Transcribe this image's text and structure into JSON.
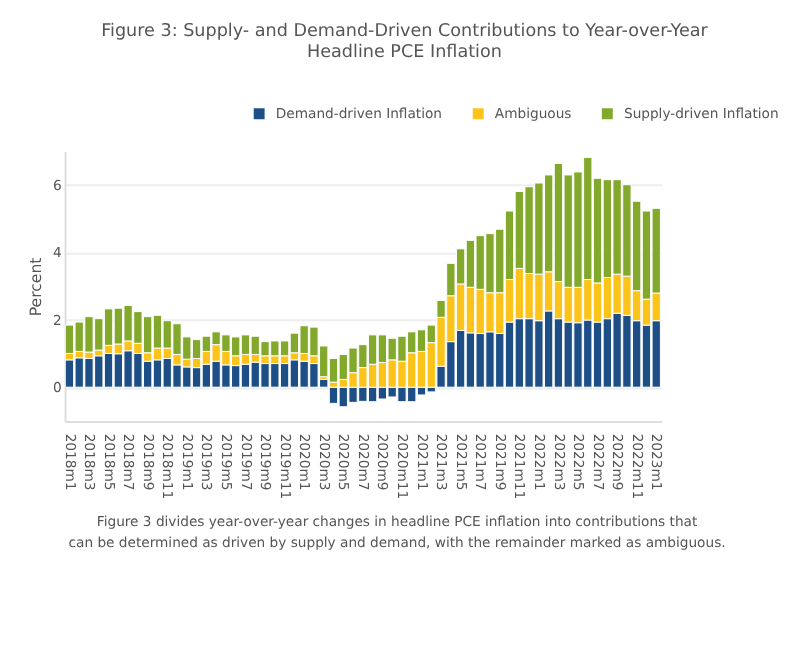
{
  "chart_data": {
    "type": "bar",
    "stacked": true,
    "title": "Figure 3: Supply- and Demand-Driven Contributions to Year-over-Year Headline PCE Inflation",
    "ylabel": "Percent",
    "annotations": [
      "Figure 3 divides year-over-year changes in headline PCE inflation into contributions that can be determined as driven by supply and demand, with the remainder marked as ambiguous."
    ],
    "categories": [
      "2018m1",
      null,
      "2018m3",
      null,
      "2018m5",
      null,
      "2018m7",
      null,
      "2018m9",
      null,
      "2018m11",
      null,
      "2019m1",
      null,
      "2019m3",
      null,
      "2019m5",
      null,
      "2019m7",
      null,
      "2019m9",
      null,
      "2019m11",
      null,
      "2020m1",
      null,
      "2020m3",
      null,
      "2020m5",
      null,
      "2020m7",
      null,
      "2020m9",
      null,
      "2020m11",
      null,
      "2021m1",
      null,
      "2021m3",
      null,
      "2021m5",
      null,
      "2021m7",
      null,
      "2021m9",
      null,
      "2021m11",
      null,
      "2022m1",
      null,
      "2022m3",
      null,
      "2022m5",
      null,
      "2022m7",
      null,
      "2022m9",
      null,
      "2022m11",
      null,
      "2023m1"
    ],
    "series": [
      {
        "name": "Demand-driven Inflation",
        "color": "#1d4f86",
        "values": [
          0.81,
          0.87,
          0.85,
          0.93,
          1.0,
          0.99,
          1.08,
          1.0,
          0.77,
          0.81,
          0.85,
          0.66,
          0.6,
          0.58,
          0.68,
          0.77,
          0.66,
          0.64,
          0.68,
          0.74,
          0.7,
          0.7,
          0.7,
          0.81,
          0.77,
          0.7,
          0.23,
          -0.48,
          -0.58,
          -0.45,
          -0.42,
          -0.43,
          -0.35,
          -0.29,
          -0.43,
          -0.43,
          -0.23,
          -0.14,
          0.62,
          1.35,
          1.68,
          1.61,
          1.59,
          1.64,
          1.59,
          1.93,
          2.03,
          2.03,
          1.97,
          2.26,
          2.03,
          1.93,
          1.91,
          1.99,
          1.93,
          2.03,
          2.19,
          2.13,
          1.97,
          1.84,
          1.97
        ]
      },
      {
        "name": "Ambiguous",
        "color": "#fcc31a",
        "values": [
          0.19,
          0.19,
          0.19,
          0.17,
          0.24,
          0.29,
          0.29,
          0.3,
          0.25,
          0.35,
          0.31,
          0.31,
          0.23,
          0.27,
          0.38,
          0.49,
          0.4,
          0.29,
          0.29,
          0.23,
          0.23,
          0.23,
          0.23,
          0.21,
          0.23,
          0.23,
          0.08,
          0.15,
          0.23,
          0.43,
          0.58,
          0.68,
          0.73,
          0.81,
          0.77,
          1.02,
          1.06,
          1.32,
          1.45,
          1.36,
          1.38,
          1.35,
          1.31,
          1.16,
          1.21,
          1.26,
          1.49,
          1.34,
          1.38,
          1.16,
          1.1,
          1.03,
          1.05,
          1.2,
          1.16,
          1.22,
          1.16,
          1.16,
          0.89,
          0.77,
          0.82
        ]
      },
      {
        "name": "Supply-driven Inflation",
        "color": "#82a82c",
        "values": [
          0.84,
          0.87,
          1.05,
          0.93,
          1.08,
          1.06,
          1.05,
          0.94,
          1.07,
          0.97,
          0.81,
          0.91,
          0.66,
          0.56,
          0.45,
          0.38,
          0.49,
          0.56,
          0.58,
          0.54,
          0.42,
          0.44,
          0.44,
          0.58,
          0.82,
          0.85,
          0.91,
          0.7,
          0.74,
          0.73,
          0.68,
          0.87,
          0.82,
          0.64,
          0.74,
          0.62,
          0.64,
          0.52,
          0.5,
          0.96,
          1.04,
          1.39,
          1.59,
          1.75,
          1.88,
          2.03,
          2.28,
          2.57,
          2.7,
          2.87,
          3.5,
          3.33,
          3.42,
          3.62,
          3.1,
          2.9,
          2.8,
          2.71,
          2.65,
          2.61,
          2.51
        ]
      }
    ],
    "ylim": [
      -1,
      7
    ],
    "yticks": [
      0,
      2,
      4,
      6
    ],
    "grid": "y",
    "legend": "top right"
  }
}
